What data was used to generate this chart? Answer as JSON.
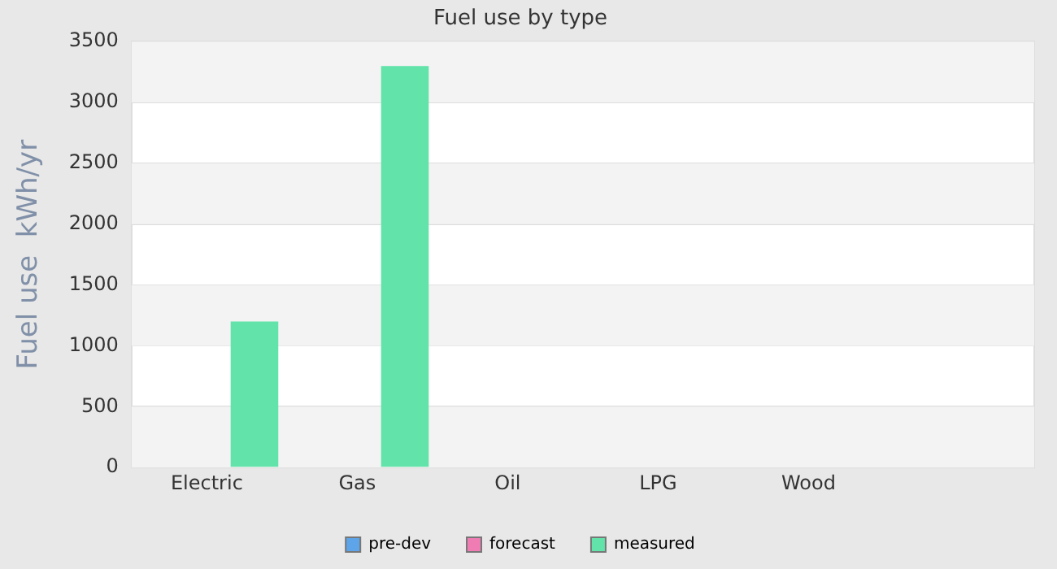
{
  "chart_data": {
    "type": "bar",
    "title": "Fuel use by type",
    "ylabel": "Fuel use  kWh/yr",
    "categories": [
      "Electric",
      "Gas",
      "Oil",
      "LPG",
      "Wood",
      null
    ],
    "series": [
      {
        "name": "pre-dev",
        "color": "#5da5e8",
        "values": [
          null,
          null,
          null,
          null,
          null,
          null
        ]
      },
      {
        "name": "forecast",
        "color": "#f07cb4",
        "values": [
          null,
          null,
          null,
          null,
          null,
          null
        ]
      },
      {
        "name": "measured",
        "color": "#62e3a9",
        "values": [
          1200,
          3300,
          null,
          null,
          null,
          null
        ]
      }
    ],
    "ylim": [
      0,
      3500
    ],
    "yticks": [
      0,
      500,
      1000,
      1500,
      2000,
      2500,
      3000,
      3500
    ],
    "grid": "y",
    "legend": "bottom"
  }
}
